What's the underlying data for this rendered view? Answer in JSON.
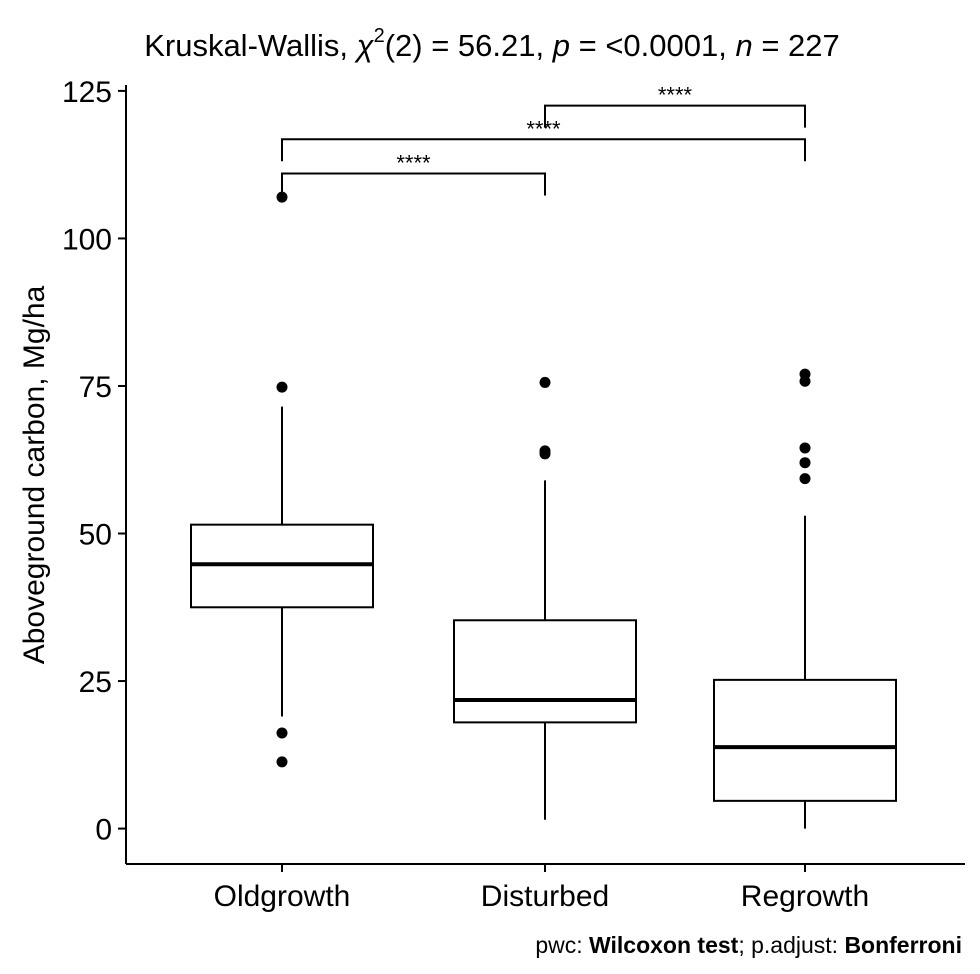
{
  "chart_data": {
    "type": "boxplot",
    "title": {
      "prefix": "Kruskal-Wallis, ",
      "chi_symbol": "χ",
      "chi_superscript": "2",
      "chi_df": "(2) = 56.21, ",
      "p_label": "p",
      "p_value": " = <0.0001, ",
      "n_label": "n",
      "n_value": " = 227"
    },
    "xlabel": "",
    "ylabel": "Aboveground carbon, Mg/ha",
    "ylim": [
      -6,
      126
    ],
    "yticks": [
      0,
      25,
      50,
      75,
      100,
      125
    ],
    "categories": [
      "Oldgrowth",
      "Disturbed",
      "Regrowth"
    ],
    "boxes": [
      {
        "name": "Oldgrowth",
        "whisker_low": 19,
        "q1": 37.5,
        "median": 44.8,
        "q3": 51.5,
        "whisker_high": 71.5,
        "outliers": [
          107,
          74.8,
          16.2,
          11.3
        ]
      },
      {
        "name": "Disturbed",
        "whisker_low": 1.5,
        "q1": 18,
        "median": 21.8,
        "q3": 35.3,
        "whisker_high": 59,
        "outliers": [
          75.6,
          64,
          63.5
        ]
      },
      {
        "name": "Regrowth",
        "whisker_low": 0,
        "q1": 4.7,
        "median": 13.8,
        "q3": 25.2,
        "whisker_high": 53,
        "outliers": [
          77,
          75.8,
          64.5,
          62,
          59.3
        ]
      }
    ],
    "comparisons": [
      {
        "from": "Oldgrowth",
        "to": "Disturbed",
        "y": 111,
        "label": "****"
      },
      {
        "from": "Oldgrowth",
        "to": "Regrowth",
        "y": 116.8,
        "label": "****"
      },
      {
        "from": "Disturbed",
        "to": "Regrowth",
        "y": 122.5,
        "label": "****"
      }
    ],
    "caption": {
      "pwc_label": "pwc: ",
      "pwc_value": "Wilcoxon test",
      "adjust_label": "; p.adjust: ",
      "adjust_value": "Bonferroni"
    }
  }
}
